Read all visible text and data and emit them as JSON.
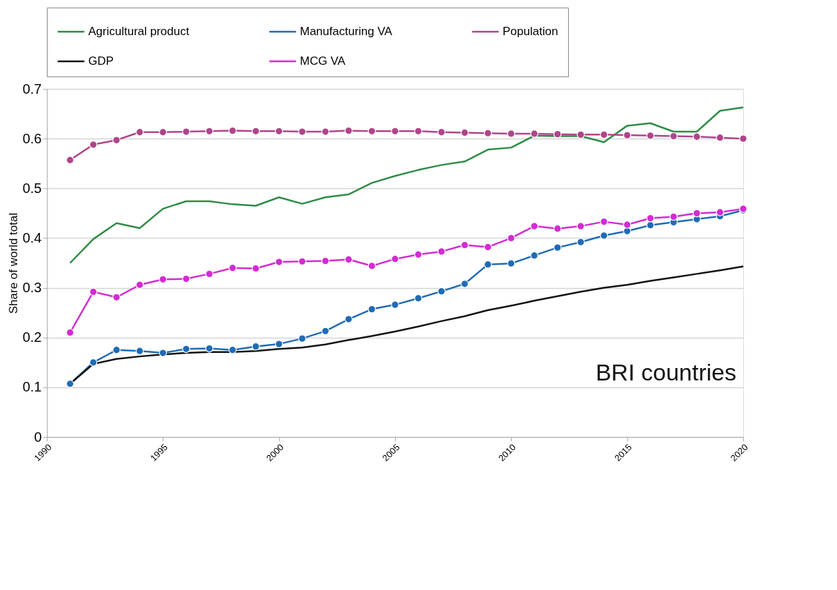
{
  "chart_data": {
    "type": "line",
    "ylabel": "Share of world total",
    "annotations": [
      "BRI countries"
    ],
    "x": [
      1991,
      1992,
      1993,
      1994,
      1995,
      1996,
      1997,
      1998,
      1999,
      2000,
      2001,
      2002,
      2003,
      2004,
      2005,
      2006,
      2007,
      2008,
      2009,
      2010,
      2011,
      2012,
      2013,
      2014,
      2015,
      2016,
      2017,
      2018,
      2019,
      2020
    ],
    "xlim": [
      1990,
      2020
    ],
    "xticks": [
      1990,
      1995,
      2000,
      2005,
      2010,
      2015,
      2020
    ],
    "ylim": [
      0,
      0.7
    ],
    "yticks": [
      0,
      0.1,
      0.2,
      0.3,
      0.4,
      0.5,
      0.6,
      0.7
    ],
    "grid": "y",
    "legend": "top",
    "series": [
      {
        "name": "Agricultural product",
        "color": "#2e8b45",
        "marker": "none",
        "values": [
          0.35,
          0.398,
          0.43,
          0.42,
          0.459,
          0.474,
          0.474,
          0.468,
          0.465,
          0.482,
          0.469,
          0.482,
          0.488,
          0.511,
          0.525,
          0.537,
          0.547,
          0.554,
          0.578,
          0.582,
          0.606,
          0.605,
          0.605,
          0.593,
          0.626,
          0.631,
          0.614,
          0.614,
          0.656,
          0.663
        ]
      },
      {
        "name": "Manufacturing VA",
        "color": "#1f6bb5",
        "marker": "circle",
        "values": [
          0.107,
          0.15,
          0.175,
          0.173,
          0.169,
          0.177,
          0.178,
          0.175,
          0.182,
          0.187,
          0.198,
          0.213,
          0.237,
          0.257,
          0.266,
          0.279,
          0.293,
          0.308,
          0.347,
          0.349,
          0.365,
          0.381,
          0.392,
          0.405,
          0.414,
          0.426,
          0.432,
          0.438,
          0.444,
          0.456
        ]
      },
      {
        "name": "Population",
        "color": "#b0448a",
        "marker": "circle",
        "values": [
          0.557,
          0.588,
          0.597,
          0.613,
          0.613,
          0.614,
          0.615,
          0.616,
          0.615,
          0.615,
          0.614,
          0.614,
          0.616,
          0.615,
          0.615,
          0.615,
          0.613,
          0.612,
          0.611,
          0.61,
          0.61,
          0.609,
          0.608,
          0.608,
          0.607,
          0.606,
          0.605,
          0.604,
          0.602,
          0.6
        ]
      },
      {
        "name": "GDP",
        "color": "#111111",
        "marker": "none",
        "values": [
          0.107,
          0.147,
          0.157,
          0.162,
          0.166,
          0.169,
          0.171,
          0.171,
          0.173,
          0.177,
          0.18,
          0.186,
          0.195,
          0.203,
          0.212,
          0.222,
          0.233,
          0.243,
          0.255,
          0.264,
          0.274,
          0.283,
          0.292,
          0.3,
          0.306,
          0.314,
          0.321,
          0.328,
          0.335,
          0.343
        ]
      },
      {
        "name": "MCG VA",
        "color": "#d42ad4",
        "marker": "circle",
        "values": [
          0.21,
          0.292,
          0.281,
          0.306,
          0.317,
          0.318,
          0.328,
          0.34,
          0.339,
          0.352,
          0.353,
          0.354,
          0.357,
          0.344,
          0.358,
          0.367,
          0.373,
          0.386,
          0.382,
          0.4,
          0.424,
          0.419,
          0.424,
          0.433,
          0.427,
          0.44,
          0.443,
          0.45,
          0.452,
          0.459
        ]
      }
    ]
  }
}
